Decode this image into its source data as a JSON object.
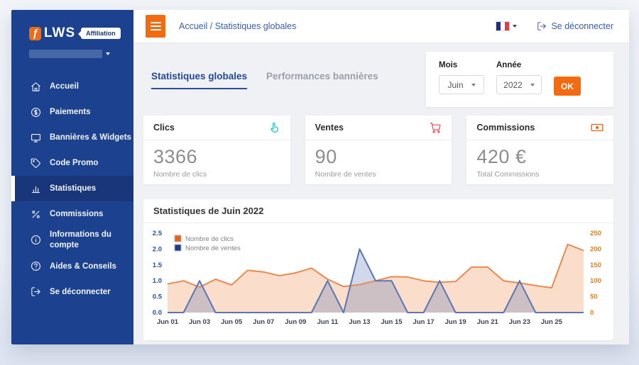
{
  "app": {
    "logo_glyph": "ƒ",
    "logo_text": "LWS",
    "badge": "Affiliation"
  },
  "colors": {
    "accent_orange": "#f26b10",
    "sidebar_blue": "#1c428f",
    "sidebar_active_blue": "#19367b",
    "link_blue": "#3a5da8",
    "tab_active_blue": "#24489b"
  },
  "sidebar": {
    "items": [
      {
        "name": "accueil",
        "icon": "home",
        "label": "Accueil",
        "active": false
      },
      {
        "name": "paiements",
        "icon": "dollar-circle",
        "label": "Paiements",
        "active": false
      },
      {
        "name": "bannieres-widgets",
        "icon": "monitor",
        "label": "Bannières & Widgets",
        "active": false
      },
      {
        "name": "code-promo",
        "icon": "tag",
        "label": "Code Promo",
        "active": false
      },
      {
        "name": "statistiques",
        "icon": "bar-chart",
        "label": "Statistiques",
        "active": true
      },
      {
        "name": "commissions",
        "icon": "percent",
        "label": "Commissions",
        "active": false
      },
      {
        "name": "informations-du-compte",
        "icon": "info-circle",
        "label": "Informations du compte",
        "active": false
      },
      {
        "name": "aides-conseils",
        "icon": "help-circle",
        "label": "Aides & Conseils",
        "active": false
      },
      {
        "name": "se-deconnecter",
        "icon": "log-out",
        "label": "Se déconnecter",
        "active": false
      }
    ]
  },
  "topbar": {
    "breadcrumb": "Accueil / Statistiques globales",
    "language": "fr",
    "logout_label": "Se déconnecter"
  },
  "tabs": [
    {
      "name": "statistiques-globales",
      "label": "Statistiques globales",
      "active": true
    },
    {
      "name": "performances-bannieres",
      "label": "Performances bannières",
      "active": false
    }
  ],
  "filter": {
    "month_label": "Mois",
    "month_value": "Juin",
    "year_label": "Année",
    "year_value": "2022",
    "ok_label": "OK"
  },
  "stats": [
    {
      "name": "clics",
      "title": "Clics",
      "value": "3366",
      "caption": "Nombre de clics",
      "icon": "hand-pointer",
      "icon_color": "#2fc5cc"
    },
    {
      "name": "ventes",
      "title": "Ventes",
      "value": "90",
      "caption": "Nombre de ventes",
      "icon": "cart",
      "icon_color": "#f0566a"
    },
    {
      "name": "commissions",
      "title": "Commissions",
      "value": "420 €",
      "caption": "Total Commissions",
      "icon": "banknote",
      "icon_color": "#f26011"
    }
  ],
  "chart_data": {
    "type": "area",
    "title": "Statistiques de Juin 2022",
    "x_unit": "day of June 2022",
    "days": [
      1,
      2,
      3,
      4,
      5,
      6,
      7,
      8,
      9,
      10,
      11,
      12,
      13,
      14,
      15,
      16,
      17,
      18,
      19,
      20,
      21,
      22,
      23,
      24,
      25,
      26,
      27
    ],
    "x_tick_labels": [
      "Jun 01",
      "Jun 03",
      "Jun 05",
      "Jun 07",
      "Jun 09",
      "Jun 11",
      "Jun 13",
      "Jun 15",
      "Jun 17",
      "Jun 19",
      "Jun 21",
      "Jun 23",
      "Jun 25"
    ],
    "series": [
      {
        "name": "Nombre de clics",
        "axis": "right",
        "color": "#e98a52",
        "fill": "rgba(243,166,115,0.38)",
        "legend_fill": "#f26011",
        "values": [
          90,
          100,
          80,
          105,
          87,
          133,
          128,
          116,
          125,
          140,
          105,
          82,
          88,
          100,
          113,
          112,
          100,
          95,
          98,
          143,
          143,
          100,
          93,
          85,
          78,
          215,
          195
        ]
      },
      {
        "name": "Nombre de ventes",
        "axis": "left",
        "color": "#5b76b4",
        "fill": "rgba(101,126,184,0.30)",
        "legend_fill": "#1f3d80",
        "values": [
          0,
          0,
          1,
          0,
          0,
          0,
          0,
          0,
          0,
          0,
          1,
          0,
          2,
          1,
          1,
          0,
          0,
          1,
          0,
          0,
          0,
          0,
          1,
          0,
          0,
          0,
          0
        ]
      }
    ],
    "left_axis": {
      "min": 0,
      "max": 2.5,
      "ticks": [
        0,
        0.5,
        1,
        1.5,
        2,
        2.5
      ],
      "color": "#2b50a1"
    },
    "right_axis": {
      "min": 0,
      "max": 250,
      "ticks": [
        0,
        50,
        100,
        150,
        200,
        250
      ],
      "color": "#e87e1e"
    },
    "legend_position": "top-left",
    "legend_border": "#a9b6cf",
    "grid": false,
    "plot_bg": "#ffffff"
  }
}
